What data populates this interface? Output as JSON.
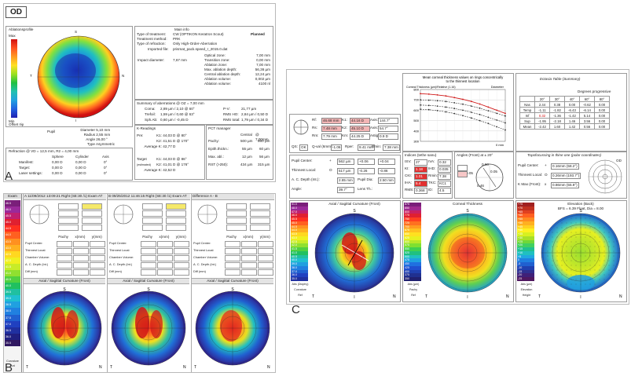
{
  "panel_a": {
    "eye": "OD",
    "ablation_title": "Ablationsprofile",
    "scale_max": "Max",
    "scale_min": "Min",
    "offset_label": "Offset r/φ",
    "orient": {
      "top": "S",
      "bottom": "I",
      "left": "T",
      "right": "N"
    },
    "pupil": {
      "label": "Pupil",
      "rows": [
        [
          "Diameter",
          "5,10 mm"
        ],
        [
          "Radius",
          "2,55 mm"
        ],
        [
          "Angle",
          "26,00 °"
        ],
        [
          "Type",
          "Asymmetric"
        ]
      ]
    },
    "refraction_title": "Refraction @ VD = 12,5 mm, R2 = 4,00 mm",
    "refraction_cols": [
      "Sphere",
      "Cylinder",
      "Axis"
    ],
    "refraction_rows": [
      [
        "Manifest:",
        "0,00 D",
        "0,00 D",
        "0°"
      ],
      [
        "Target:",
        "0,00 D",
        "0,00 D",
        "0°"
      ],
      [
        "Laser settings:",
        "0,00 D",
        "0,00 D",
        "0°"
      ]
    ],
    "main_info_title": "Main info",
    "main_info": [
      [
        "Type of treatment:",
        "CW (OPTIKON Keratron Scout)"
      ],
      [
        "Treatment method:",
        "PRK"
      ],
      [
        "Type of refraction:",
        "Only High-Order-Aberration"
      ],
      [
        "Imported file:",
        "prismat_pack.speed_r_2015.0.dat"
      ]
    ],
    "info_status": "Planned",
    "impact_label": "Impact diameter:",
    "impact_value": "7,67 mm",
    "zones": [
      [
        "Optical zone:",
        "7,00 mm"
      ],
      [
        "Transition zone:",
        "0,00 mm"
      ],
      [
        "Ablation zone:",
        "7,00 mm"
      ],
      [
        "Max. ablation depth:",
        "56,36 µm"
      ],
      [
        "Central ablation depth:",
        "12,24 µm"
      ],
      [
        "Ablation volume:",
        "0,002 µm"
      ],
      [
        "Ablation volume:",
        "4100 nl"
      ]
    ],
    "summary_title": "Summary of aberrations @ OZ = 7,00 mm",
    "summary": [
      [
        "Coma:",
        "2,89 µm / 2,10 @ 60°",
        "P-V:",
        "21,77 µm"
      ],
      [
        "Trefoil:",
        "1,59 µm / 0,60 @ 63°",
        "RMS HO:",
        "2,84 µm / 0,50 D"
      ],
      [
        "Sph.Ab:",
        "0,60 µm / -0,45 D",
        "RMS total:",
        "1,79 µm / 0,34 D"
      ]
    ],
    "k_title": "K-Readings",
    "k_pre": [
      [
        "Pre:",
        "K1:",
        "44,03 D",
        "@",
        "80°"
      ],
      [
        "",
        "K2:",
        "41,51 D",
        "@",
        "170°"
      ],
      [
        "",
        "Average K:",
        "42,77 D",
        "",
        ""
      ]
    ],
    "k_target": [
      [
        "Target",
        "K1:",
        "44,03 D",
        "@",
        "86°"
      ],
      [
        "(estimated)",
        "K2:",
        "41,01 D",
        "@",
        "176°"
      ],
      [
        "",
        "Average K:",
        "42,52 D",
        "",
        ""
      ]
    ],
    "pct_title": "PCT manager",
    "pct": [
      [
        "Central",
        "@ 7,00mm"
      ],
      [
        "Pachy:",
        "500 µm",
        "560 µm"
      ],
      [
        "Epith.thickn.:",
        "55 µm",
        "60 µm"
      ],
      [
        "Max. abl.:",
        "12 µm",
        "56 µm"
      ],
      [
        "RST (>250):",
        "434 µm",
        "315 µm"
      ]
    ]
  },
  "panel_b": {
    "side_title": "Exam",
    "side_scale": [
      "46.5",
      "46.0",
      "45.5",
      "45.0",
      "44.5",
      "44.0",
      "43.5",
      "43.0",
      "42.5",
      "42.0",
      "41.5",
      "41.0",
      "40.5",
      "40.0",
      "39.5",
      "39.0",
      "38.5",
      "38.0",
      "37.5",
      "37.0",
      "36.5",
      "36.0",
      "35.5"
    ],
    "side_footer": [
      "Curvature",
      "Ant"
    ],
    "exam_a": "A  11/09/2012 13:09:21  Right  (SE:30 /1)  Exam AT",
    "exam_b": "B  09/25/2012 11:46:15  Right  (SE:30 /1)  Exam AT",
    "diff_title": "Difference A - B",
    "row_labels": [
      "Pupil Center:",
      "Thinnest Local:",
      "Chamber Volume:",
      "A. C. Depth (Int.)",
      "Diff (mm)"
    ],
    "col_labels": [
      "Pachy",
      "x(mm)",
      "y(mm)"
    ],
    "map_a_title": "Axial / Sagittal Curvature (Front)",
    "map_b_title": "Axial / Sagittal Curvature (Front)",
    "map_d_title": "Axial / Sagittal Curvature (Front)",
    "orient": {
      "top": "S",
      "left": "T",
      "right": "N"
    }
  },
  "panel_c": {
    "chart_title": "Mean corneal thickness values on rings concentrically\nto the thinnest location",
    "chart_ylabel": "Corneal Thickness (µm)/Relative (1.16)",
    "chart_xlabel": "Diameter",
    "chart_xunit": "0 mm",
    "kr_rows": [
      [
        "Rf:",
        "46.68 mm",
        "K1:",
        "44.16 D",
        "Axis:",
        "144.7°"
      ],
      [
        "Rs:",
        "7.48 mm",
        "K2:",
        "45.10 D",
        "Axis:",
        "54.7°"
      ],
      [
        "Rm:",
        "7.79 mm",
        "Km:",
        "44.25 D",
        "Astig:",
        "0.9 D"
      ]
    ],
    "q_row": [
      "QS:",
      "OK",
      "Q-val (6mm):",
      "-1.06",
      "Rper:",
      "9.41 mm",
      "Rmin:",
      "7.38 mm"
    ],
    "pupil_rows": [
      [
        "Pupil Center:",
        "+",
        "562 µm",
        "+0.06",
        "+0.04"
      ],
      [
        "Thinnest Local:",
        "O",
        "517 µm",
        "-0.26",
        "-0.86"
      ],
      [
        "A. C. Depth (Int.):",
        "",
        "2.85 mm",
        "Pupil Dia:",
        "2.50 mm"
      ],
      [
        "Angle:",
        "",
        "39.7°",
        "Lens Th.:",
        ""
      ]
    ],
    "ect_title": "Ectasia Table (Summary)",
    "ect_cols": [
      "20°",
      "30°",
      "40°",
      "60°",
      "80°"
    ],
    "ect_sub": "Degrees progressive",
    "ect_rows": [
      [
        "Nas",
        "2.44",
        "0.38",
        "0.00",
        "-0.62",
        "0.00"
      ],
      [
        "Temp",
        "-1.11",
        "-1.82",
        "-6.43",
        "-6.14",
        "0.00"
      ],
      [
        "Inf",
        "0.32",
        "-1.36",
        "-1.42",
        "5.14",
        "0.00"
      ],
      [
        "Sup",
        "-1.95",
        "-2.18",
        "1.46",
        "3.56",
        "0.00"
      ],
      [
        "Mean",
        "-2.42",
        "1.60",
        "1.42",
        "0.56",
        "0.00"
      ]
    ],
    "indices_title": "Indices (tethe sanu)",
    "indices": [
      [
        "ISV:",
        "27",
        "IVA:",
        "0.32"
      ],
      [
        "KI:",
        "1.18",
        "IHD:",
        "0.035"
      ],
      [
        "CKI:",
        "1.01",
        "Rmin:",
        "7.38"
      ],
      [
        "IHA:",
        "5.4",
        "TKC:",
        "KC1"
      ],
      [
        "RMS:",
        "0.368",
        "ID:",
        "4.5"
      ]
    ],
    "angle_title": "Angles (Front) at ± 20°",
    "angle_vals": [
      "0.60",
      "0.05",
      "0.46",
      "0.05"
    ],
    "topo_title": "Topofocussing in thine one (polar coordinates)",
    "topo_rows": [
      [
        "Pupil Center:",
        "+",
        "0.16mm (58.2°)"
      ],
      [
        "Thinnest Local:",
        "O",
        "0.26mm (193.7°)"
      ],
      [
        "K Max (Front):",
        "x",
        "0.86mm (55.9°)"
      ]
    ],
    "topo_label": "OD",
    "map1_title": "Axial / Sagittal Curvature (Front)",
    "map2_title": "Corneal Thickness",
    "map3_title": "Elevation (Back)",
    "map3_sub": "BFS = 6.39 Float, Dia = 8.00",
    "map1_footer": [
      "Abs (Dioptry)",
      "Curvature",
      "Ref"
    ],
    "map2_footer": [
      "Abs (µm)",
      "Pachy",
      "Ref"
    ],
    "map3_footer": [
      "Abs (µm)",
      "Elevation",
      "Height"
    ],
    "scale1": [
      "51.0",
      "48.0",
      "47.0",
      "46.0",
      "45.5",
      "45.0",
      "44.5",
      "44.0",
      "43.5",
      "43.0",
      "42.5",
      "42.0",
      "41.5",
      "41.0",
      "40.5",
      "40.0",
      "39.0",
      "38.0",
      "37.0",
      "36.0",
      "35.0"
    ],
    "scale2": [
      "875",
      "850",
      "800",
      "775",
      "750",
      "725",
      "700",
      "675",
      "650",
      "625",
      "600",
      "575",
      "550",
      "525",
      "500",
      "475",
      "450",
      "425",
      "400",
      "375",
      "350"
    ],
    "scale3": [
      "+75",
      "+70",
      "+65",
      "+60",
      "+55",
      "+50",
      "+45",
      "+40",
      "+35",
      "+30",
      "+25",
      "+20",
      "+15",
      "+10",
      "+5",
      "0",
      "-5",
      "-10",
      "-15",
      "-20",
      "-25"
    ],
    "orient": {
      "top": "S",
      "left": "T",
      "right": "N",
      "bottom": "I"
    }
  },
  "labels": {
    "a": "A",
    "b": "B",
    "c": "C"
  },
  "chart_data": {
    "type": "line",
    "title": "Mean corneal thickness values on rings concentrically\nto the thinnest location",
    "xlabel": "Diameter",
    "ylabel": "Corneal Thickness (µm)/Relative (1.16)",
    "x": [
      0,
      1,
      2,
      3,
      4,
      5,
      6,
      7,
      8,
      9,
      10
    ],
    "ylim": [
      300,
      800
    ],
    "series": [
      {
        "values": [
          760,
          755,
          748,
          738,
          722,
          705,
          685,
          660,
          630,
          600,
          570
        ]
      },
      {
        "values": [
          700,
          697,
          692,
          684,
          672,
          658,
          640,
          620,
          595,
          570,
          545
        ]
      },
      {
        "values": [
          650,
          646,
          640,
          630,
          617,
          600,
          580,
          558,
          532,
          505,
          478
        ]
      },
      {
        "values": [
          610,
          605,
          596,
          584,
          568,
          548,
          525,
          500,
          472,
          440,
          410
        ]
      }
    ]
  }
}
